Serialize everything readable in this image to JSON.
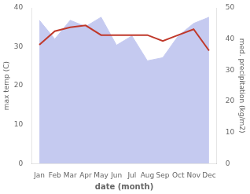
{
  "chart_data": {
    "type": "line",
    "categories": [
      "Jan",
      "Feb",
      "Mar",
      "Apr",
      "May",
      "Jun",
      "Jul",
      "Aug",
      "Sep",
      "Oct",
      "Nov",
      "Dec"
    ],
    "xlabel": "date (month)",
    "ylabel": "max temp (C)",
    "y2label": "med. precipitation (kg/m2)",
    "series": [
      {
        "type": "area",
        "color": "#c5caf0",
        "axis": "y2",
        "values": [
          46,
          40,
          46,
          44,
          47,
          38,
          41,
          33,
          34,
          41,
          45,
          47
        ]
      },
      {
        "type": "line",
        "color": "#c0392b",
        "values": [
          30.5,
          34,
          35,
          35.5,
          33,
          33,
          33,
          33,
          31.5,
          33,
          34.5,
          29
        ]
      }
    ],
    "ylim": [
      0,
      40
    ],
    "yticks": [
      0,
      10,
      20,
      30,
      40
    ],
    "y2lim": [
      0,
      50
    ],
    "y2ticks": [
      0,
      10,
      20,
      30,
      40,
      50
    ],
    "grid": false
  }
}
